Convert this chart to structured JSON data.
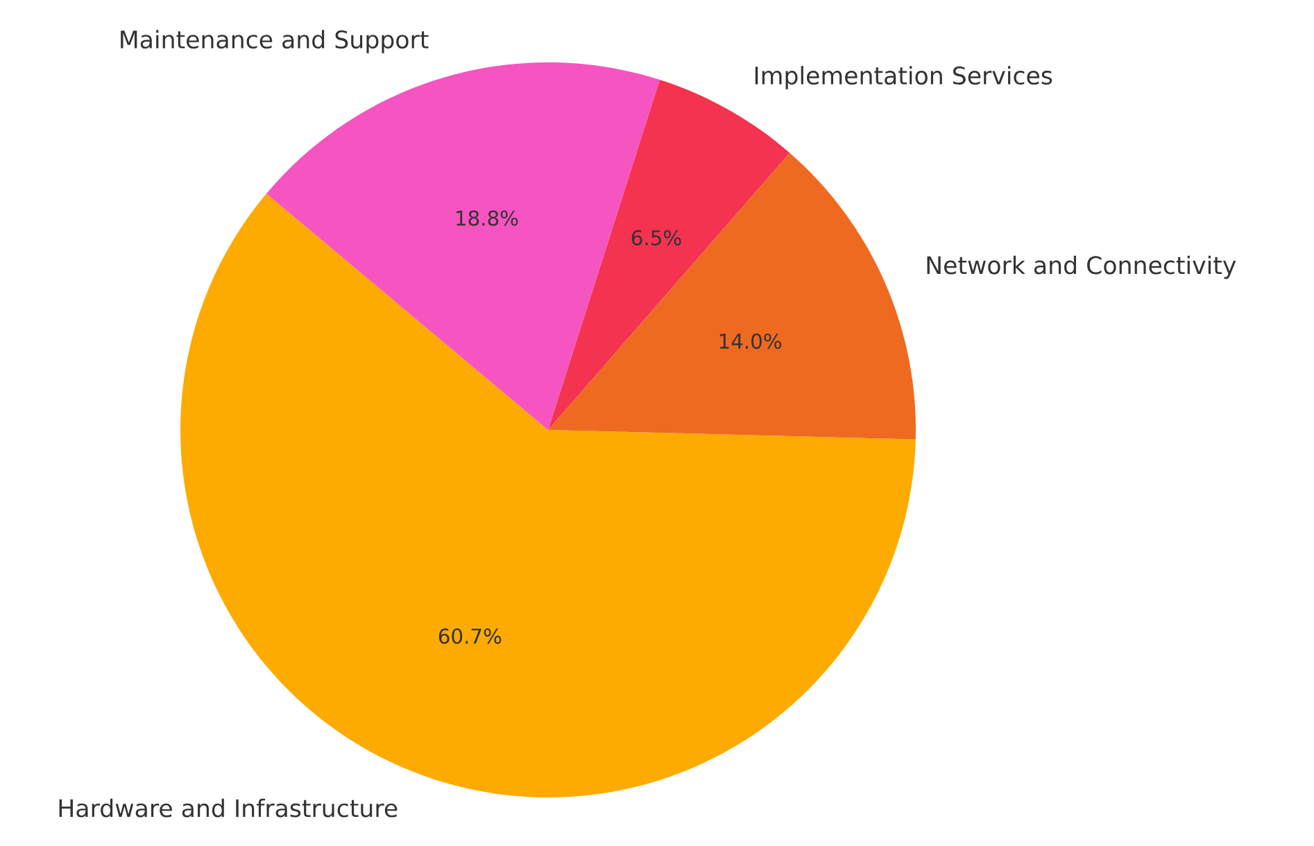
{
  "chart_data": {
    "type": "pie",
    "categories": [
      "Hardware and Infrastructure",
      "Network and Connectivity",
      "Implementation Services",
      "Maintenance and Support"
    ],
    "values": [
      60.7,
      14.0,
      6.5,
      18.8
    ],
    "colors": [
      "#fdab00",
      "#ef6a21",
      "#f43350",
      "#f654c0"
    ],
    "value_labels": [
      "60.7%",
      "14.0%",
      "6.5%",
      "18.8%"
    ]
  }
}
